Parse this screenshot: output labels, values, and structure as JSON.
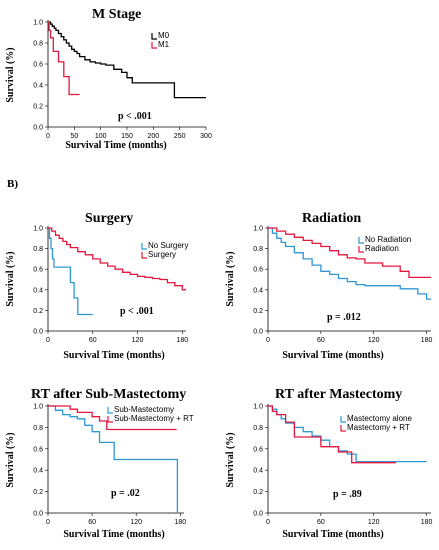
{
  "section_label": "B)",
  "chart_data": [
    {
      "id": "mstage",
      "type": "line",
      "subtype": "kaplan-meier",
      "title": "M Stage",
      "xlabel": "Survival Time (months)",
      "ylabel": "Survival (%)",
      "xlim": [
        0,
        300
      ],
      "ylim": [
        0,
        1.0
      ],
      "xticks": [
        0,
        50,
        100,
        150,
        200,
        250,
        300
      ],
      "yticks": [
        0.0,
        0.2,
        0.4,
        0.6,
        0.8,
        1.0
      ],
      "p_value": "p < .001",
      "legend_position": "top-right",
      "series": [
        {
          "name": "M0",
          "color": "#000000",
          "x": [
            0,
            5,
            8,
            12,
            15,
            20,
            25,
            30,
            35,
            40,
            45,
            50,
            55,
            60,
            70,
            80,
            90,
            100,
            110,
            125,
            140,
            150,
            160,
            240,
            300
          ],
          "y": [
            1.0,
            0.98,
            0.96,
            0.94,
            0.92,
            0.89,
            0.86,
            0.83,
            0.8,
            0.77,
            0.74,
            0.72,
            0.7,
            0.67,
            0.64,
            0.62,
            0.61,
            0.6,
            0.59,
            0.55,
            0.52,
            0.47,
            0.42,
            0.28,
            0.28
          ]
        },
        {
          "name": "M1",
          "color": "#e4183c",
          "x": [
            0,
            2,
            5,
            10,
            20,
            30,
            40,
            60
          ],
          "y": [
            1.0,
            0.92,
            0.85,
            0.72,
            0.62,
            0.48,
            0.31,
            0.31
          ]
        }
      ]
    },
    {
      "id": "surgery",
      "type": "line",
      "subtype": "kaplan-meier",
      "title": "Surgery",
      "xlabel": "Survival Time (months)",
      "ylabel": "Survival (%)",
      "xlim": [
        0,
        185
      ],
      "ylim": [
        0,
        1.0
      ],
      "xticks": [
        0,
        60,
        120,
        180
      ],
      "yticks": [
        0.0,
        0.2,
        0.4,
        0.6,
        0.8,
        1.0
      ],
      "p_value": "p < .001",
      "legend_position": "top-right",
      "series": [
        {
          "name": "No Surgery",
          "color": "#2f97d6",
          "x": [
            0,
            2,
            4,
            6,
            8,
            20,
            30,
            35,
            40,
            60
          ],
          "y": [
            1.0,
            0.9,
            0.8,
            0.7,
            0.62,
            0.62,
            0.47,
            0.32,
            0.16,
            0.16
          ]
        },
        {
          "name": "Surgery",
          "color": "#e4183c",
          "x": [
            0,
            5,
            10,
            15,
            20,
            25,
            30,
            40,
            50,
            60,
            70,
            80,
            90,
            100,
            110,
            120,
            130,
            140,
            150,
            160,
            170,
            180,
            185
          ],
          "y": [
            1.0,
            0.97,
            0.93,
            0.9,
            0.87,
            0.84,
            0.81,
            0.77,
            0.74,
            0.7,
            0.66,
            0.63,
            0.6,
            0.57,
            0.55,
            0.53,
            0.52,
            0.51,
            0.5,
            0.47,
            0.44,
            0.4,
            0.4
          ]
        }
      ]
    },
    {
      "id": "radiation",
      "type": "line",
      "subtype": "kaplan-meier",
      "title": "Radiation",
      "xlabel": "Survival Time (months)",
      "ylabel": "Survival (%)",
      "xlim": [
        0,
        185
      ],
      "ylim": [
        0,
        1.0
      ],
      "xticks": [
        0,
        60,
        120,
        180
      ],
      "yticks": [
        0.0,
        0.2,
        0.4,
        0.6,
        0.8,
        1.0
      ],
      "p_value": "p = .012",
      "legend_position": "top-right",
      "series": [
        {
          "name": "No Radiation",
          "color": "#2f97d6",
          "x": [
            0,
            5,
            10,
            15,
            20,
            30,
            40,
            50,
            60,
            70,
            80,
            90,
            100,
            110,
            120,
            130,
            150,
            170,
            180,
            185
          ],
          "y": [
            1.0,
            0.95,
            0.9,
            0.86,
            0.82,
            0.76,
            0.7,
            0.64,
            0.58,
            0.55,
            0.51,
            0.48,
            0.45,
            0.44,
            0.44,
            0.44,
            0.41,
            0.36,
            0.31,
            0.31
          ]
        },
        {
          "name": "Radiation",
          "color": "#e4183c",
          "x": [
            0,
            10,
            20,
            30,
            40,
            50,
            60,
            70,
            80,
            90,
            100,
            110,
            120,
            130,
            150,
            160,
            185
          ],
          "y": [
            1.0,
            0.97,
            0.94,
            0.91,
            0.88,
            0.85,
            0.82,
            0.78,
            0.74,
            0.71,
            0.7,
            0.66,
            0.66,
            0.63,
            0.58,
            0.52,
            0.52
          ]
        }
      ]
    },
    {
      "id": "rt_submast",
      "type": "line",
      "subtype": "kaplan-meier",
      "title": "RT after Sub-Mastectomy",
      "xlabel": "Survival Time (months)",
      "ylabel": "Survival (%)",
      "xlim": [
        0,
        185
      ],
      "ylim": [
        0,
        1.0
      ],
      "xticks": [
        0,
        60,
        120,
        180
      ],
      "yticks": [
        0.0,
        0.2,
        0.4,
        0.6,
        0.8,
        1.0
      ],
      "p_value": "p = .02",
      "legend_position": "top-right",
      "series": [
        {
          "name": "Sub-Mastectomy",
          "color": "#2f97d6",
          "x": [
            0,
            10,
            20,
            30,
            40,
            50,
            60,
            70,
            90,
            120,
            170,
            175,
            176
          ],
          "y": [
            1.0,
            0.96,
            0.92,
            0.9,
            0.88,
            0.82,
            0.76,
            0.66,
            0.5,
            0.5,
            0.5,
            0.5,
            0.0
          ]
        },
        {
          "name": "Sub-Mastectomy + RT",
          "color": "#e4183c",
          "x": [
            0,
            20,
            30,
            40,
            60,
            70,
            80,
            120,
            175
          ],
          "y": [
            1.0,
            1.0,
            0.97,
            0.94,
            0.9,
            0.86,
            0.78,
            0.78,
            0.78
          ]
        }
      ]
    },
    {
      "id": "rt_mast",
      "type": "line",
      "subtype": "kaplan-meier",
      "title": "RT after Mastectomy",
      "xlabel": "Survival Time (months)",
      "ylabel": "Survival (%)",
      "xlim": [
        0,
        185
      ],
      "ylim": [
        0,
        1.0
      ],
      "xticks": [
        0,
        60,
        120,
        180
      ],
      "yticks": [
        0.0,
        0.2,
        0.4,
        0.6,
        0.8,
        1.0
      ],
      "p_value": "p = .89",
      "legend_position": "top-right",
      "series": [
        {
          "name": "Mastectomy alone",
          "color": "#2f97d6",
          "x": [
            0,
            5,
            10,
            15,
            20,
            30,
            40,
            50,
            60,
            70,
            80,
            90,
            100,
            140,
            180
          ],
          "y": [
            1.0,
            0.97,
            0.92,
            0.88,
            0.84,
            0.8,
            0.76,
            0.72,
            0.68,
            0.62,
            0.58,
            0.55,
            0.48,
            0.48,
            0.48
          ]
        },
        {
          "name": "Mastectomy + RT",
          "color": "#e4183c",
          "x": [
            0,
            5,
            10,
            20,
            30,
            50,
            60,
            80,
            95,
            145
          ],
          "y": [
            1.0,
            0.95,
            0.92,
            0.85,
            0.71,
            0.71,
            0.62,
            0.57,
            0.47,
            0.47
          ]
        }
      ]
    }
  ]
}
